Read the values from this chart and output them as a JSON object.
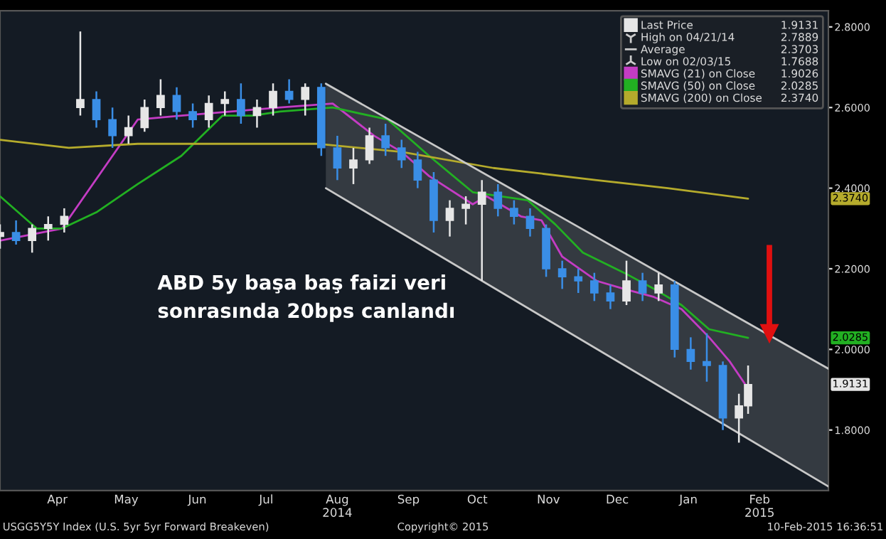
{
  "chart_data": {
    "type": "candlestick",
    "ylim": [
      1.65,
      2.84
    ],
    "yticks": [
      {
        "value": 1.8,
        "label": "1.8000"
      },
      {
        "value": 2.0,
        "label": "2.0000"
      },
      {
        "value": 2.2,
        "label": "2.2000"
      },
      {
        "value": 2.4,
        "label": "2.4000"
      },
      {
        "value": 2.6,
        "label": "2.6000"
      },
      {
        "value": 2.8,
        "label": "2.8000"
      }
    ],
    "xlim": [
      "2014-03-21",
      "2015-03-17"
    ],
    "xticks": [
      {
        "value": "2014-04-15",
        "label": "Apr"
      },
      {
        "value": "2014-05-15",
        "label": "May"
      },
      {
        "value": "2014-06-15",
        "label": "Jun"
      },
      {
        "value": "2014-07-15",
        "label": "Jul"
      },
      {
        "value": "2014-08-15",
        "label": "Aug\n2014"
      },
      {
        "value": "2014-09-15",
        "label": "Sep"
      },
      {
        "value": "2014-10-15",
        "label": "Oct"
      },
      {
        "value": "2014-11-15",
        "label": "Nov"
      },
      {
        "value": "2014-12-15",
        "label": "Dec"
      },
      {
        "value": "2015-01-15",
        "label": "Jan"
      },
      {
        "value": "2015-02-15",
        "label": "Feb\n2015"
      }
    ],
    "legend": "top right",
    "series": [
      {
        "name": "Last Price",
        "colors": [
          "#e6e6e6",
          "#3a8ee6",
          "#e6e6e6",
          "#e6e6e6",
          "#e6e6e6",
          "#e6e6e6",
          "#3a8ee6",
          "#3a8ee6",
          "#e6e6e6",
          "#e6e6e6",
          "#e6e6e6",
          "#3a8ee6",
          "#3a8ee6",
          "#e6e6e6",
          "#e6e6e6",
          "#3a8ee6",
          "#e6e6e6",
          "#e6e6e6",
          "#3a8ee6",
          "#e6e6e6",
          "#3a8ee6",
          "#3a8ee6",
          "#e6e6e6",
          "#e6e6e6",
          "#3a8ee6",
          "#3a8ee6",
          "#3a8ee6",
          "#3a8ee6",
          "#e6e6e6",
          "#e6e6e6",
          "#e6e6e6",
          "#3a8ee6",
          "#3a8ee6",
          "#3a8ee6",
          "#3a8ee6",
          "#3a8ee6",
          "#3a8ee6",
          "#3a8ee6",
          "#3a8ee6",
          "#e6e6e6",
          "#3a8ee6",
          "#e6e6e6",
          "#3a8ee6",
          "#3a8ee6",
          "#3a8ee6",
          "#3a8ee6",
          "#e6e6e6",
          "#e6e6e6"
        ],
        "x": [
          "2014-03-21",
          "2014-03-28",
          "2014-04-04",
          "2014-04-11",
          "2014-04-18",
          "2014-04-25",
          "2014-05-02",
          "2014-05-09",
          "2014-05-16",
          "2014-05-23",
          "2014-05-30",
          "2014-06-06",
          "2014-06-13",
          "2014-06-20",
          "2014-06-27",
          "2014-07-04",
          "2014-07-11",
          "2014-07-18",
          "2014-07-25",
          "2014-08-01",
          "2014-08-08",
          "2014-08-15",
          "2014-08-22",
          "2014-08-29",
          "2014-09-05",
          "2014-09-12",
          "2014-09-19",
          "2014-09-26",
          "2014-10-03",
          "2014-10-10",
          "2014-10-17",
          "2014-10-24",
          "2014-10-31",
          "2014-11-07",
          "2014-11-14",
          "2014-11-21",
          "2014-11-28",
          "2014-12-05",
          "2014-12-12",
          "2014-12-19",
          "2014-12-26",
          "2015-01-02",
          "2015-01-09",
          "2015-01-16",
          "2015-01-23",
          "2015-01-30",
          "2015-02-06",
          "2015-02-10"
        ],
        "ohlc": [
          [
            2.28,
            2.31,
            2.25,
            2.29
          ],
          [
            2.29,
            2.32,
            2.26,
            2.27
          ],
          [
            2.27,
            2.31,
            2.24,
            2.3
          ],
          [
            2.3,
            2.33,
            2.27,
            2.31
          ],
          [
            2.31,
            2.35,
            2.29,
            2.33
          ],
          [
            2.6,
            2.7889,
            2.58,
            2.62
          ],
          [
            2.62,
            2.64,
            2.55,
            2.57
          ],
          [
            2.57,
            2.6,
            2.5,
            2.53
          ],
          [
            2.53,
            2.58,
            2.51,
            2.55
          ],
          [
            2.55,
            2.62,
            2.54,
            2.6
          ],
          [
            2.6,
            2.67,
            2.58,
            2.63
          ],
          [
            2.63,
            2.65,
            2.57,
            2.59
          ],
          [
            2.59,
            2.61,
            2.55,
            2.57
          ],
          [
            2.57,
            2.63,
            2.55,
            2.61
          ],
          [
            2.61,
            2.64,
            2.58,
            2.62
          ],
          [
            2.62,
            2.66,
            2.56,
            2.58
          ],
          [
            2.58,
            2.62,
            2.55,
            2.6
          ],
          [
            2.6,
            2.66,
            2.58,
            2.64
          ],
          [
            2.64,
            2.67,
            2.61,
            2.62
          ],
          [
            2.62,
            2.66,
            2.58,
            2.65
          ],
          [
            2.65,
            2.66,
            2.48,
            2.5
          ],
          [
            2.5,
            2.53,
            2.42,
            2.45
          ],
          [
            2.45,
            2.5,
            2.41,
            2.47
          ],
          [
            2.47,
            2.55,
            2.46,
            2.53
          ],
          [
            2.53,
            2.56,
            2.48,
            2.5
          ],
          [
            2.5,
            2.52,
            2.45,
            2.47
          ],
          [
            2.47,
            2.49,
            2.4,
            2.42
          ],
          [
            2.42,
            2.44,
            2.29,
            2.32
          ],
          [
            2.32,
            2.37,
            2.28,
            2.35
          ],
          [
            2.35,
            2.38,
            2.31,
            2.36
          ],
          [
            2.36,
            2.42,
            2.17,
            2.39
          ],
          [
            2.39,
            2.41,
            2.33,
            2.35
          ],
          [
            2.35,
            2.37,
            2.31,
            2.33
          ],
          [
            2.33,
            2.35,
            2.28,
            2.3
          ],
          [
            2.3,
            2.31,
            2.18,
            2.2
          ],
          [
            2.2,
            2.22,
            2.15,
            2.18
          ],
          [
            2.18,
            2.2,
            2.14,
            2.17
          ],
          [
            2.17,
            2.19,
            2.12,
            2.14
          ],
          [
            2.14,
            2.16,
            2.1,
            2.12
          ],
          [
            2.12,
            2.22,
            2.11,
            2.17
          ],
          [
            2.17,
            2.19,
            2.12,
            2.14
          ],
          [
            2.14,
            2.19,
            2.12,
            2.16
          ],
          [
            2.16,
            2.17,
            1.98,
            2.0
          ],
          [
            2.0,
            2.03,
            1.95,
            1.97
          ],
          [
            1.97,
            2.04,
            1.92,
            1.96
          ],
          [
            1.96,
            1.97,
            1.8,
            1.83
          ],
          [
            1.83,
            1.89,
            1.7688,
            1.86
          ],
          [
            1.86,
            1.96,
            1.84,
            1.9131
          ]
        ]
      },
      {
        "name": "SMAVG (21) on Close",
        "type": "line",
        "color": "#c43cc4",
        "x": [
          "2014-03-21",
          "2014-04-17",
          "2014-05-20",
          "2014-06-08",
          "2014-07-21",
          "2014-08-13",
          "2014-08-31",
          "2014-09-12",
          "2014-09-24",
          "2014-10-13",
          "2014-10-19",
          "2014-11-03",
          "2014-11-12",
          "2014-11-21",
          "2014-12-06",
          "2014-12-18",
          "2014-12-31",
          "2015-01-12",
          "2015-01-24",
          "2015-02-02",
          "2015-02-10"
        ],
        "values": [
          2.27,
          2.3,
          2.57,
          2.58,
          2.6,
          2.61,
          2.53,
          2.49,
          2.43,
          2.36,
          2.38,
          2.33,
          2.32,
          2.23,
          2.17,
          2.15,
          2.13,
          2.1,
          2.03,
          1.97,
          1.9026
        ]
      },
      {
        "name": "SMAVG (50) on Close",
        "type": "line",
        "color": "#22b022",
        "x": [
          "2014-03-21",
          "2014-04-06",
          "2014-04-17",
          "2014-05-02",
          "2014-05-20",
          "2014-06-08",
          "2014-06-26",
          "2014-07-09",
          "2014-07-21",
          "2014-08-13",
          "2014-09-06",
          "2014-09-24",
          "2014-10-13",
          "2014-11-06",
          "2014-11-18",
          "2014-11-30",
          "2014-12-18",
          "2014-12-31",
          "2015-01-12",
          "2015-01-24",
          "2015-02-10"
        ],
        "values": [
          2.38,
          2.3,
          2.3,
          2.34,
          2.41,
          2.48,
          2.58,
          2.58,
          2.59,
          2.6,
          2.57,
          2.48,
          2.39,
          2.37,
          2.31,
          2.24,
          2.19,
          2.15,
          2.11,
          2.05,
          2.0285
        ]
      },
      {
        "name": "SMAVG (200) on Close",
        "type": "line",
        "color": "#b5ab2c",
        "x": [
          "2014-03-21",
          "2014-04-20",
          "2014-05-20",
          "2014-07-21",
          "2014-08-06",
          "2014-09-12",
          "2014-10-22",
          "2014-12-06",
          "2015-01-06",
          "2015-02-10"
        ],
        "values": [
          2.52,
          2.5,
          2.51,
          2.51,
          2.51,
          2.49,
          2.45,
          2.42,
          2.4,
          2.374
        ]
      },
      {
        "type": "line",
        "color": "#c8c8c8",
        "x": [
          "2014-08-10",
          "2015-03-17"
        ],
        "values": [
          2.659,
          1.952
        ],
        "lower": [
          2.4,
          1.66
        ],
        "upper": [
          2.659,
          1.952
        ]
      },
      {
        "type": "line",
        "color": "#c8c8c8",
        "x": [
          "2014-08-10",
          "2015-03-17"
        ],
        "values": [
          2.4,
          1.66
        ]
      }
    ],
    "annotations": [
      "ABD 5y başa baş faizi veri\nsonrasında 20bps canlandı",
      "USGG5Y5Y Index (U.S. 5yr 5yr Forward Breakeven)",
      "Copyright© 2015",
      "10-Feb-2015 16:36:51",
      "High on 04/21/14",
      "Average",
      "Low on 02/03/15",
      "1.9131",
      "2.7889",
      "2.3703",
      "1.7688",
      "1.9026",
      "2.0285",
      "2.3740",
      {
        "text": "2.3740",
        "y": 2.374
      },
      {
        "text": "2.0285",
        "y": 2.0285
      },
      {
        "text": "1.9131",
        "y": 1.9131
      }
    ]
  }
}
